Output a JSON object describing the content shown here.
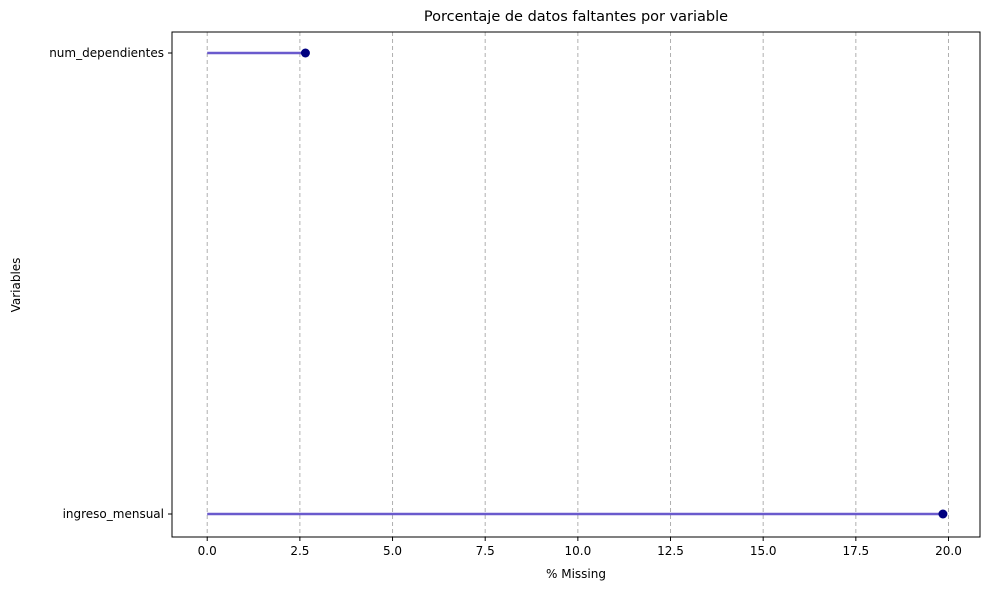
{
  "chart_data": {
    "type": "lollipop",
    "title": "Porcentaje de datos faltantes por variable",
    "xlabel": "% Missing",
    "ylabel": "Variables",
    "categories": [
      "ingreso_mensual",
      "num_dependientes"
    ],
    "values": [
      19.85,
      2.65
    ],
    "xlim": [
      -0.95,
      20.85
    ],
    "xticks": [
      0.0,
      2.5,
      5.0,
      7.5,
      10.0,
      12.5,
      15.0,
      17.5,
      20.0
    ],
    "xtick_labels": [
      "0.0",
      "2.5",
      "5.0",
      "7.5",
      "10.0",
      "12.5",
      "15.0",
      "17.5",
      "20.0"
    ],
    "grid": "x-dashed",
    "stem_color": "#6a5acd",
    "marker_color": "#000080",
    "grid_color": "#b0b0b0"
  }
}
